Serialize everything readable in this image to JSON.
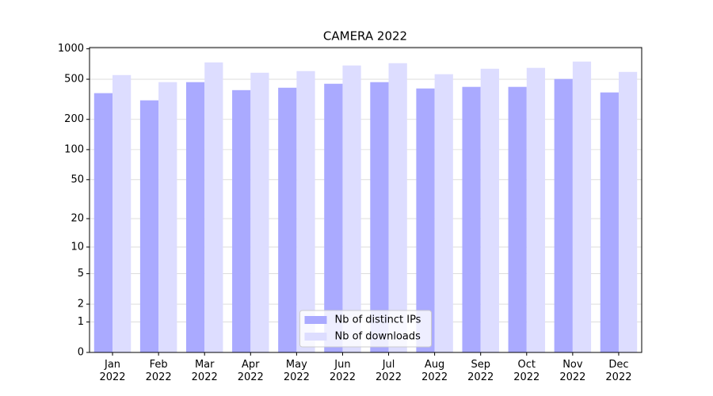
{
  "chart_data": {
    "type": "bar",
    "title": "CAMERA 2022",
    "categories": [
      "Jan\n2022",
      "Feb\n2022",
      "Mar\n2022",
      "Apr\n2022",
      "May\n2022",
      "Jun\n2022",
      "Jul\n2022",
      "Aug\n2022",
      "Sep\n2022",
      "Oct\n2022",
      "Nov\n2022",
      "Dec\n2022"
    ],
    "series": [
      {
        "name": "Nb of distinct IPs",
        "color": "#aaaaff",
        "values": [
          364,
          309,
          468,
          390,
          412,
          451,
          468,
          405,
          420,
          420,
          503,
          370
        ]
      },
      {
        "name": "Nb of downloads",
        "color": "#ddddff",
        "values": [
          550,
          468,
          734,
          580,
          602,
          684,
          721,
          561,
          635,
          648,
          748,
          591
        ]
      }
    ],
    "yscale": "symlog",
    "ylim": [
      0,
      1030
    ],
    "yticks": [
      0,
      1,
      2,
      5,
      10,
      20,
      50,
      100,
      200,
      500,
      1000
    ],
    "grid": true,
    "legend": "lower center"
  }
}
